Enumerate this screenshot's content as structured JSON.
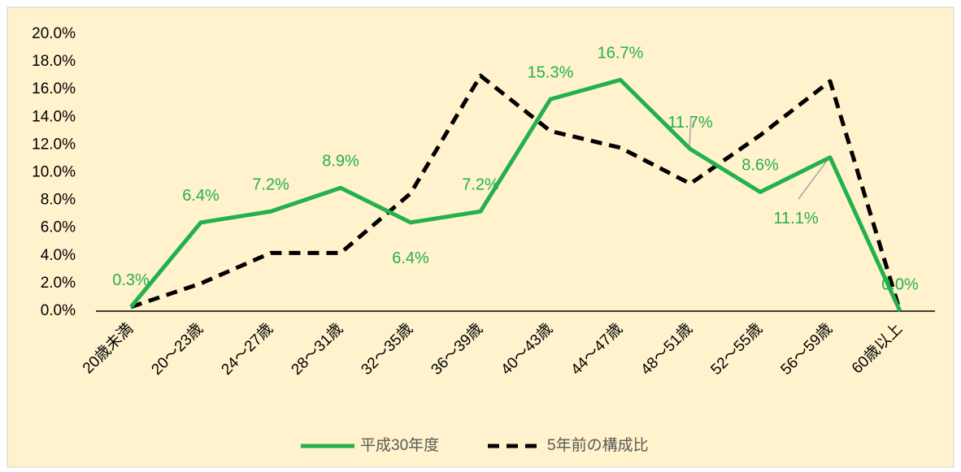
{
  "chart_data": {
    "type": "line",
    "categories": [
      "20歳未満",
      "20～23歳",
      "24～27歳",
      "28～31歳",
      "32～35歳",
      "36～39歳",
      "40～43歳",
      "44～47歳",
      "48～51歳",
      "52～55歳",
      "56～59歳",
      "60歳以上"
    ],
    "series": [
      {
        "name": "平成30年度",
        "color": "#22b14c",
        "dash": false,
        "values": [
          0.3,
          6.4,
          7.2,
          8.9,
          6.4,
          7.2,
          15.3,
          16.7,
          11.7,
          8.6,
          11.1,
          0.0
        ],
        "value_labels": [
          "0.3%",
          "6.4%",
          "7.2%",
          "8.9%",
          "6.4%",
          "7.2%",
          "15.3%",
          "16.7%",
          "11.7%",
          "8.6%",
          "11.1%",
          "0.0%"
        ]
      },
      {
        "name": "5年前の構成比",
        "color": "#000000",
        "dash": true,
        "values": [
          0.3,
          2.0,
          4.2,
          4.2,
          8.5,
          17.0,
          13.0,
          11.8,
          9.2,
          12.7,
          16.6,
          0.0
        ]
      }
    ],
    "ylim": [
      0,
      20
    ],
    "yticks": [
      {
        "value": 0,
        "label": "0.0%"
      },
      {
        "value": 2,
        "label": "2.0%"
      },
      {
        "value": 4,
        "label": "4.0%"
      },
      {
        "value": 6,
        "label": "6.0%"
      },
      {
        "value": 8,
        "label": "8.0%"
      },
      {
        "value": 10,
        "label": "10.0%"
      },
      {
        "value": 12,
        "label": "12.0%"
      },
      {
        "value": 14,
        "label": "14.0%"
      },
      {
        "value": 16,
        "label": "16.0%"
      },
      {
        "value": 18,
        "label": "18.0%"
      },
      {
        "value": 20,
        "label": "20.0%"
      }
    ],
    "legend": "bottom"
  }
}
